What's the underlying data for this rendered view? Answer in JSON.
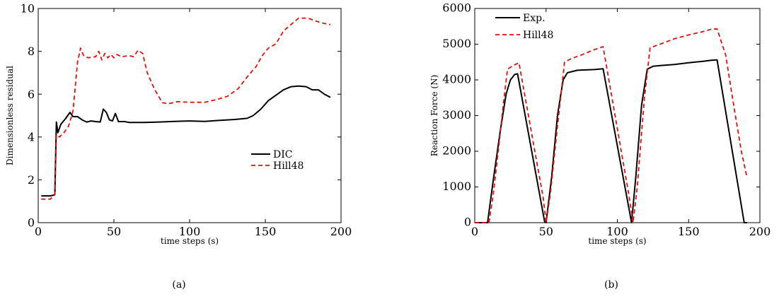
{
  "chart_data": [
    {
      "type": "line",
      "caption": "(a)",
      "xlabel": "time steps (s)",
      "ylabel": "Dimensionless residual",
      "xlim": [
        0,
        200
      ],
      "ylim": [
        0,
        10
      ],
      "xticks": [
        "0",
        "50",
        "100",
        "150",
        "200"
      ],
      "yticks": [
        "0",
        "2",
        "4",
        "6",
        "8",
        "10"
      ],
      "legend_position": "right",
      "series": [
        {
          "name": "DIC",
          "color": "#000000",
          "dash": "solid",
          "points": [
            [
              2,
              1.25
            ],
            [
              8,
              1.25
            ],
            [
              11,
              1.3
            ],
            [
              12,
              4.7
            ],
            [
              13,
              4.2
            ],
            [
              15,
              4.6
            ],
            [
              18,
              4.85
            ],
            [
              21,
              5.15
            ],
            [
              23,
              4.95
            ],
            [
              26,
              4.95
            ],
            [
              29,
              4.8
            ],
            [
              32,
              4.7
            ],
            [
              35,
              4.75
            ],
            [
              38,
              4.72
            ],
            [
              41,
              4.7
            ],
            [
              43,
              5.3
            ],
            [
              45,
              5.15
            ],
            [
              47,
              4.8
            ],
            [
              49,
              4.75
            ],
            [
              51,
              5.1
            ],
            [
              53,
              4.72
            ],
            [
              57,
              4.72
            ],
            [
              60,
              4.68
            ],
            [
              70,
              4.68
            ],
            [
              80,
              4.7
            ],
            [
              90,
              4.73
            ],
            [
              100,
              4.75
            ],
            [
              110,
              4.73
            ],
            [
              120,
              4.78
            ],
            [
              130,
              4.82
            ],
            [
              138,
              4.87
            ],
            [
              142,
              5.0
            ],
            [
              147,
              5.3
            ],
            [
              152,
              5.7
            ],
            [
              157,
              5.95
            ],
            [
              162,
              6.2
            ],
            [
              167,
              6.35
            ],
            [
              172,
              6.38
            ],
            [
              177,
              6.35
            ],
            [
              181,
              6.2
            ],
            [
              185,
              6.2
            ],
            [
              189,
              6.0
            ],
            [
              193,
              5.85
            ]
          ]
        },
        {
          "name": "Hill48",
          "color": "#e01010",
          "dash": "dashed",
          "points": [
            [
              2,
              1.1
            ],
            [
              8,
              1.1
            ],
            [
              11,
              1.3
            ],
            [
              12,
              4.1
            ],
            [
              14,
              4.0
            ],
            [
              17,
              4.2
            ],
            [
              20,
              4.5
            ],
            [
              23,
              5.2
            ],
            [
              26,
              7.5
            ],
            [
              28,
              8.15
            ],
            [
              30,
              7.8
            ],
            [
              33,
              7.7
            ],
            [
              38,
              7.75
            ],
            [
              40,
              8.0
            ],
            [
              42,
              7.6
            ],
            [
              44,
              7.9
            ],
            [
              46,
              7.7
            ],
            [
              48,
              7.85
            ],
            [
              50,
              7.7
            ],
            [
              52,
              7.85
            ],
            [
              55,
              7.75
            ],
            [
              60,
              7.8
            ],
            [
              63,
              7.75
            ],
            [
              66,
              8.05
            ],
            [
              69,
              7.9
            ],
            [
              72,
              7.0
            ],
            [
              77,
              6.2
            ],
            [
              82,
              5.6
            ],
            [
              86,
              5.55
            ],
            [
              92,
              5.65
            ],
            [
              100,
              5.62
            ],
            [
              110,
              5.62
            ],
            [
              118,
              5.75
            ],
            [
              125,
              5.9
            ],
            [
              132,
              6.25
            ],
            [
              138,
              6.8
            ],
            [
              144,
              7.3
            ],
            [
              148,
              7.8
            ],
            [
              152,
              8.15
            ],
            [
              157,
              8.35
            ],
            [
              162,
              8.95
            ],
            [
              167,
              9.25
            ],
            [
              172,
              9.55
            ],
            [
              178,
              9.55
            ],
            [
              184,
              9.4
            ],
            [
              189,
              9.3
            ],
            [
              193,
              9.25
            ]
          ]
        }
      ]
    },
    {
      "type": "line",
      "caption": "(b)",
      "xlabel": "time steps (s)",
      "ylabel": "Reaction Force (N)",
      "xlim": [
        0,
        200
      ],
      "ylim": [
        0,
        6000
      ],
      "xticks": [
        "0",
        "50",
        "100",
        "150",
        "200"
      ],
      "yticks": [
        "0",
        "1000",
        "2000",
        "3000",
        "4000",
        "5000",
        "6000"
      ],
      "legend_position": "top-left",
      "series": [
        {
          "name": "Exp.",
          "color": "#000000",
          "dash": "solid",
          "points": [
            [
              0,
              0
            ],
            [
              9,
              0
            ],
            [
              13,
              1200
            ],
            [
              18,
              2600
            ],
            [
              22,
              3600
            ],
            [
              25,
              4000
            ],
            [
              28,
              4150
            ],
            [
              30,
              4170
            ],
            [
              49,
              30
            ],
            [
              50,
              0
            ],
            [
              54,
              1300
            ],
            [
              58,
              3000
            ],
            [
              62,
              4000
            ],
            [
              65,
              4200
            ],
            [
              68,
              4230
            ],
            [
              72,
              4270
            ],
            [
              78,
              4280
            ],
            [
              84,
              4290
            ],
            [
              90,
              4310
            ],
            [
              110,
              0
            ],
            [
              113,
              1300
            ],
            [
              117,
              3300
            ],
            [
              121,
              4300
            ],
            [
              125,
              4380
            ],
            [
              130,
              4400
            ],
            [
              140,
              4430
            ],
            [
              150,
              4480
            ],
            [
              160,
              4520
            ],
            [
              166,
              4550
            ],
            [
              170,
              4560
            ],
            [
              189,
              0
            ],
            [
              191,
              0
            ]
          ]
        },
        {
          "name": "Hill48",
          "color": "#e01010",
          "dash": "dashed",
          "points": [
            [
              0,
              0
            ],
            [
              10,
              0
            ],
            [
              13,
              800
            ],
            [
              17,
              2200
            ],
            [
              20,
              3300
            ],
            [
              23,
              4300
            ],
            [
              27,
              4400
            ],
            [
              31,
              4480
            ],
            [
              48,
              700
            ],
            [
              50,
              0
            ],
            [
              53,
              800
            ],
            [
              58,
              2700
            ],
            [
              63,
              4500
            ],
            [
              68,
              4600
            ],
            [
              75,
              4700
            ],
            [
              82,
              4820
            ],
            [
              90,
              4930
            ],
            [
              108,
              800
            ],
            [
              111,
              0
            ],
            [
              114,
              1000
            ],
            [
              119,
              3500
            ],
            [
              123,
              4900
            ],
            [
              130,
              5000
            ],
            [
              140,
              5150
            ],
            [
              150,
              5260
            ],
            [
              160,
              5350
            ],
            [
              166,
              5420
            ],
            [
              170,
              5430
            ],
            [
              176,
              4700
            ],
            [
              182,
              3200
            ],
            [
              187,
              2000
            ],
            [
              191,
              1250
            ]
          ]
        }
      ]
    }
  ]
}
